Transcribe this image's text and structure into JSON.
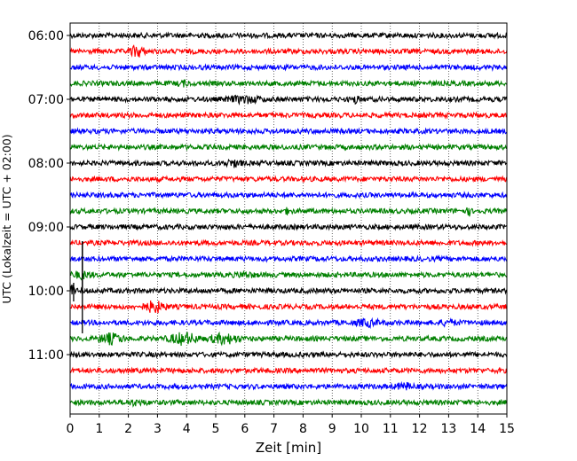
{
  "chart_data": {
    "type": "line",
    "title": "",
    "xlabel": "Zeit  [min]",
    "ylabel": "UTC (Lokalzeit = UTC + 02:00)",
    "xlim": [
      0,
      15
    ],
    "x_ticks": [
      "0",
      "1",
      "2",
      "3",
      "4",
      "5",
      "6",
      "7",
      "8",
      "9",
      "10",
      "11",
      "12",
      "13",
      "14",
      "15"
    ],
    "y_ticks": [
      "06:00",
      "07:00",
      "08:00",
      "09:00",
      "10:00",
      "11:00"
    ],
    "grid": "vertical dotted lines at each minute",
    "trace_interval_min": 15,
    "trace_colors": [
      "#000000",
      "#ff0000",
      "#0000ff",
      "#008000"
    ],
    "traces": [
      {
        "start": "06:00",
        "color": "#000000"
      },
      {
        "start": "06:15",
        "color": "#ff0000"
      },
      {
        "start": "06:30",
        "color": "#0000ff"
      },
      {
        "start": "06:45",
        "color": "#008000"
      },
      {
        "start": "07:00",
        "color": "#000000"
      },
      {
        "start": "07:15",
        "color": "#ff0000"
      },
      {
        "start": "07:30",
        "color": "#0000ff"
      },
      {
        "start": "07:45",
        "color": "#008000"
      },
      {
        "start": "08:00",
        "color": "#000000"
      },
      {
        "start": "08:15",
        "color": "#ff0000"
      },
      {
        "start": "08:30",
        "color": "#0000ff"
      },
      {
        "start": "08:45",
        "color": "#008000"
      },
      {
        "start": "09:00",
        "color": "#000000"
      },
      {
        "start": "09:15",
        "color": "#ff0000"
      },
      {
        "start": "09:30",
        "color": "#0000ff"
      },
      {
        "start": "09:45",
        "color": "#008000"
      },
      {
        "start": "10:00",
        "color": "#000000"
      },
      {
        "start": "10:15",
        "color": "#ff0000"
      },
      {
        "start": "10:30",
        "color": "#0000ff"
      },
      {
        "start": "10:45",
        "color": "#008000"
      },
      {
        "start": "11:00",
        "color": "#000000"
      },
      {
        "start": "11:15",
        "color": "#ff0000"
      },
      {
        "start": "11:30",
        "color": "#0000ff"
      },
      {
        "start": "11:45",
        "color": "#008000"
      }
    ]
  }
}
